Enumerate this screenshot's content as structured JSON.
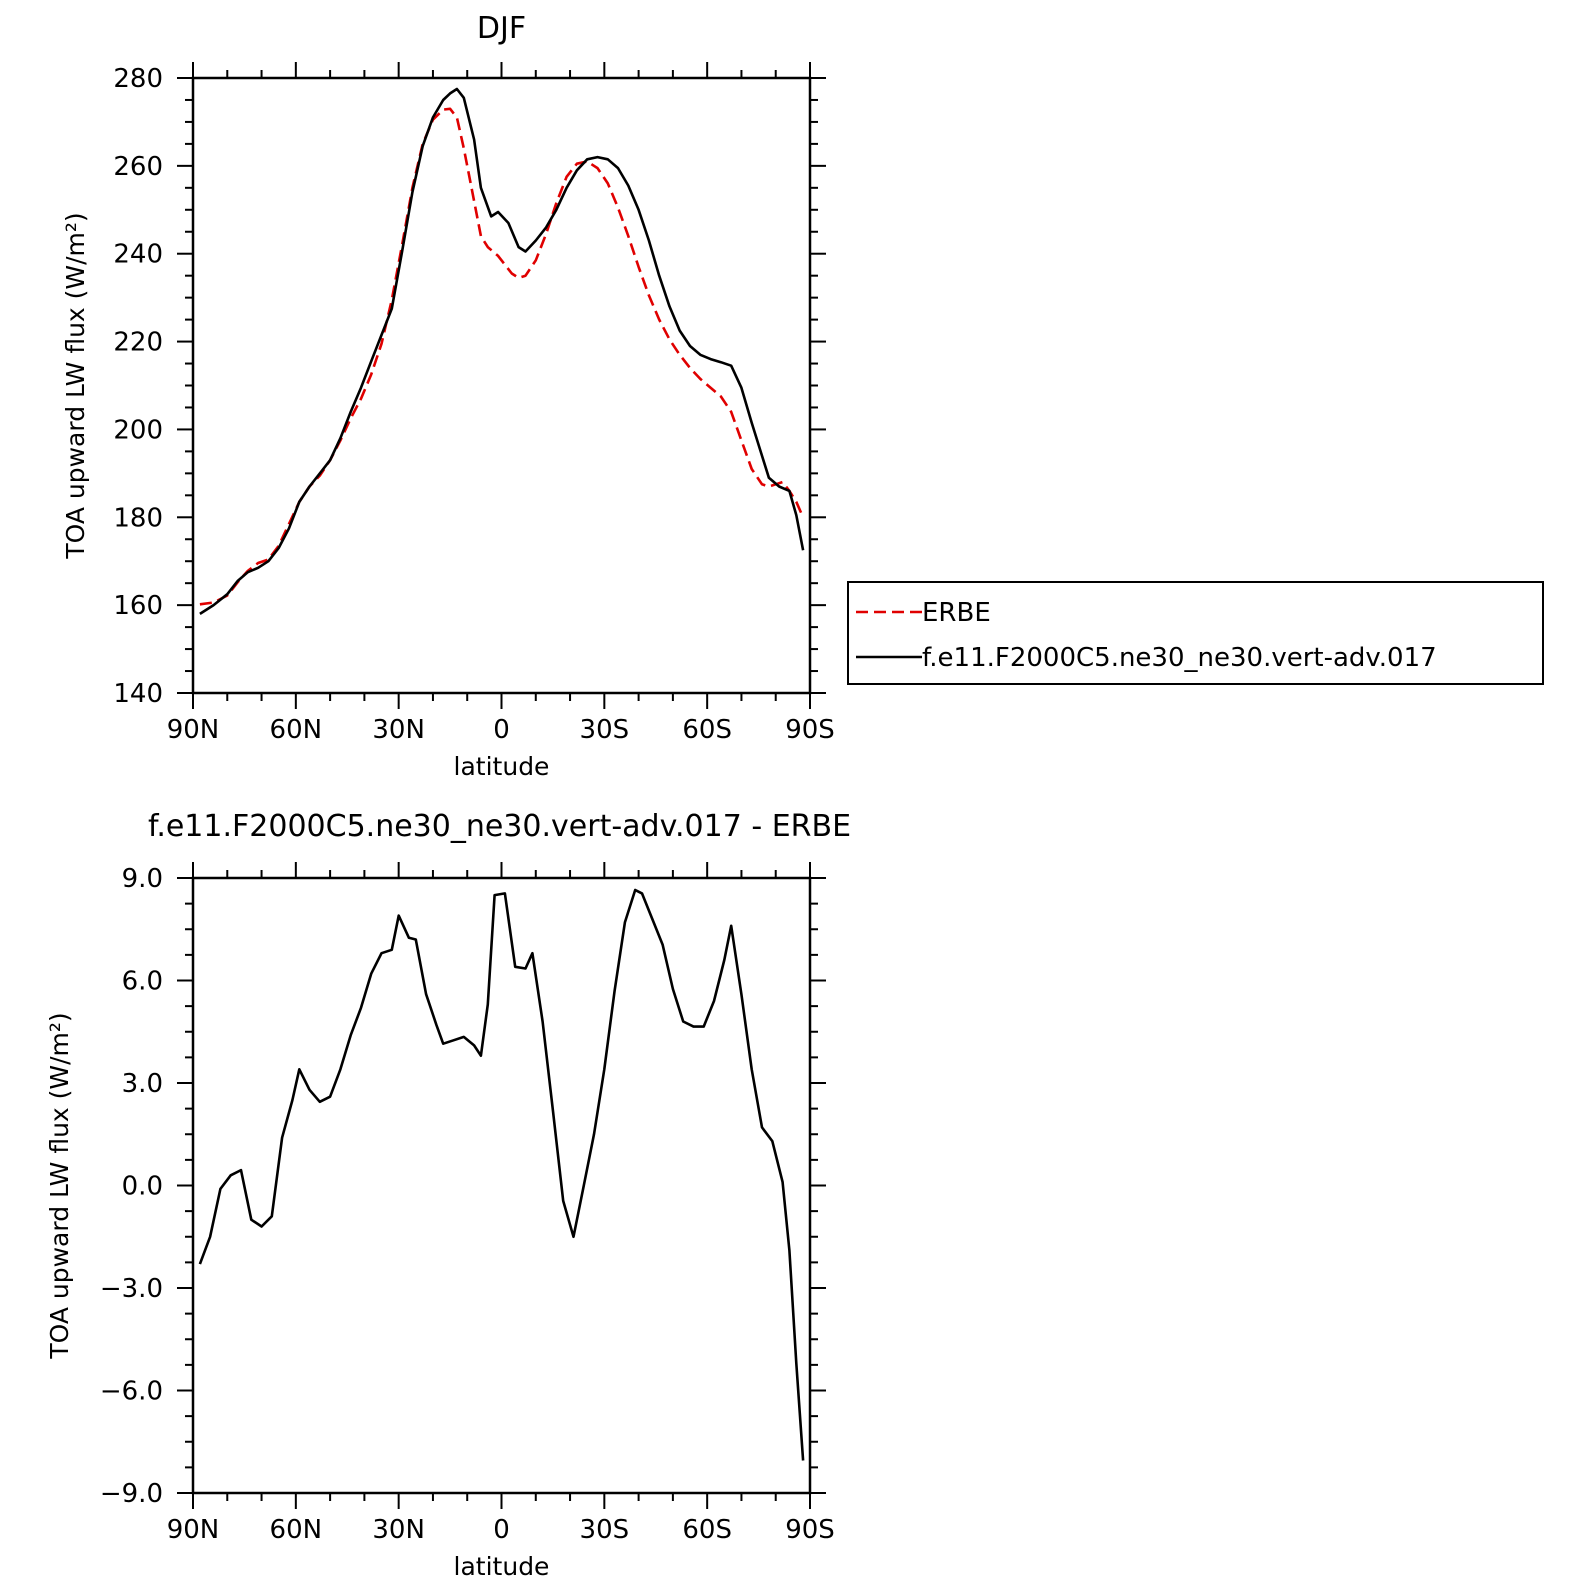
{
  "chart_data": [
    {
      "type": "line",
      "title": "DJF",
      "xlabel": "latitude",
      "ylabel": "TOA upward LW flux (W/m²)",
      "xlim": [
        90,
        -90
      ],
      "ylim": [
        140,
        280
      ],
      "xticks": [
        90,
        60,
        30,
        0,
        -30,
        -60,
        -90
      ],
      "xtick_labels": [
        "90N",
        "60N",
        "30N",
        "0",
        "30S",
        "60S",
        "90S"
      ],
      "yticks": [
        140,
        160,
        180,
        200,
        220,
        240,
        260,
        280
      ],
      "ytick_labels": [
        "140",
        "160",
        "180",
        "200",
        "220",
        "240",
        "260",
        "280"
      ],
      "grid": false,
      "legend_position": "right",
      "legend": [
        "ERBE",
        "f.e11.F2000C5.ne30_ne30.vert-adv.017"
      ],
      "series": [
        {
          "name": "ERBE",
          "color": "#e00000",
          "dash": true,
          "points": [
            [
              88,
              160.2
            ],
            [
              84,
              160.6
            ],
            [
              80,
              162.2
            ],
            [
              77,
              165.2
            ],
            [
              74,
              167.8
            ],
            [
              71,
              169.6
            ],
            [
              68,
              170.4
            ],
            [
              65,
              173.5
            ],
            [
              62,
              178.5
            ],
            [
              59,
              183.5
            ],
            [
              56,
              187
            ],
            [
              53,
              189.5
            ],
            [
              50,
              193
            ],
            [
              47,
              197.5
            ],
            [
              44,
              202.5
            ],
            [
              41,
              207
            ],
            [
              38,
              212.5
            ],
            [
              35,
              219.5
            ],
            [
              32,
              229.5
            ],
            [
              29,
              242
            ],
            [
              26,
              255
            ],
            [
              23,
              265
            ],
            [
              20,
              270.5
            ],
            [
              17,
              272.8
            ],
            [
              15,
              273
            ],
            [
              13,
              271
            ],
            [
              11,
              264
            ],
            [
              8,
              252
            ],
            [
              6,
              244
            ],
            [
              4,
              241.5
            ],
            [
              1,
              239.5
            ],
            [
              -1,
              237.5
            ],
            [
              -3,
              235.5
            ],
            [
              -5,
              234.5
            ],
            [
              -7,
              235
            ],
            [
              -10,
              238.5
            ],
            [
              -13,
              244.5
            ],
            [
              -16,
              251.5
            ],
            [
              -19,
              257.5
            ],
            [
              -22,
              260.5
            ],
            [
              -25,
              261
            ],
            [
              -28,
              259.5
            ],
            [
              -31,
              256
            ],
            [
              -34,
              250.5
            ],
            [
              -37,
              244
            ],
            [
              -40,
              237
            ],
            [
              -43,
              230.5
            ],
            [
              -46,
              225
            ],
            [
              -49,
              220.5
            ],
            [
              -52,
              217
            ],
            [
              -55,
              214
            ],
            [
              -58,
              211.5
            ],
            [
              -61,
              209.5
            ],
            [
              -64,
              207.5
            ],
            [
              -67,
              204
            ],
            [
              -70,
              197.5
            ],
            [
              -73,
              191
            ],
            [
              -76,
              187.5
            ],
            [
              -78,
              187
            ],
            [
              -80,
              187.5
            ],
            [
              -82,
              188
            ],
            [
              -84,
              186
            ],
            [
              -86,
              183.5
            ],
            [
              -88,
              180
            ]
          ]
        },
        {
          "name": "f.e11.F2000C5.ne30_ne30.vert-adv.017",
          "color": "#000000",
          "dash": false,
          "points": [
            [
              88,
              158
            ],
            [
              84,
              160
            ],
            [
              80,
              162.5
            ],
            [
              77,
              165.5
            ],
            [
              74,
              167.5
            ],
            [
              71,
              168.5
            ],
            [
              68,
              170
            ],
            [
              65,
              173
            ],
            [
              62,
              177.5
            ],
            [
              59,
              183.5
            ],
            [
              56,
              187
            ],
            [
              53,
              190
            ],
            [
              50,
              193
            ],
            [
              47,
              198
            ],
            [
              44,
              204
            ],
            [
              41,
              209.5
            ],
            [
              38,
              215.5
            ],
            [
              35,
              221.5
            ],
            [
              32,
              227.5
            ],
            [
              29,
              240.5
            ],
            [
              26,
              254
            ],
            [
              23,
              264.5
            ],
            [
              20,
              271
            ],
            [
              17,
              275
            ],
            [
              15,
              276.5
            ],
            [
              13,
              277.5
            ],
            [
              11,
              275.5
            ],
            [
              8,
              266
            ],
            [
              6,
              255
            ],
            [
              3,
              248.5
            ],
            [
              1,
              249.5
            ],
            [
              -2,
              247
            ],
            [
              -5,
              241.5
            ],
            [
              -7,
              240.5
            ],
            [
              -10,
              243
            ],
            [
              -13,
              246
            ],
            [
              -16,
              250
            ],
            [
              -19,
              255
            ],
            [
              -22,
              259
            ],
            [
              -25,
              261.5
            ],
            [
              -28,
              262
            ],
            [
              -31,
              261.5
            ],
            [
              -34,
              259.5
            ],
            [
              -37,
              255.5
            ],
            [
              -40,
              250
            ],
            [
              -43,
              243
            ],
            [
              -46,
              235
            ],
            [
              -49,
              228
            ],
            [
              -52,
              222.5
            ],
            [
              -55,
              219
            ],
            [
              -58,
              217
            ],
            [
              -61,
              216
            ],
            [
              -64,
              215.3
            ],
            [
              -67,
              214.5
            ],
            [
              -70,
              209.5
            ],
            [
              -73,
              201.5
            ],
            [
              -76,
              194
            ],
            [
              -78,
              189
            ],
            [
              -81,
              187
            ],
            [
              -84,
              186
            ],
            [
              -86,
              180.5
            ],
            [
              -88,
              172.5
            ]
          ]
        }
      ]
    },
    {
      "type": "line",
      "title": "f.e11.F2000C5.ne30_ne30.vert-adv.017 - ERBE",
      "xlabel": "latitude",
      "ylabel": "TOA upward LW flux (W/m²)",
      "xlim": [
        90,
        -90
      ],
      "ylim": [
        -9,
        9
      ],
      "xticks": [
        90,
        60,
        30,
        0,
        -30,
        -60,
        -90
      ],
      "xtick_labels": [
        "90N",
        "60N",
        "30N",
        "0",
        "30S",
        "60S",
        "90S"
      ],
      "yticks": [
        -9,
        -6,
        -3,
        0,
        3,
        6,
        9
      ],
      "ytick_labels": [
        "−9.0",
        "−6.0",
        "−3.0",
        "0.0",
        "3.0",
        "6.0",
        "9.0"
      ],
      "grid": false,
      "series": [
        {
          "color": "#000000",
          "dash": false,
          "points": [
            [
              88,
              -2.3
            ],
            [
              85,
              -1.5
            ],
            [
              82,
              -0.1
            ],
            [
              79,
              0.3
            ],
            [
              76,
              0.45
            ],
            [
              73,
              -1
            ],
            [
              70,
              -1.2
            ],
            [
              67,
              -0.9
            ],
            [
              64,
              1.4
            ],
            [
              61,
              2.5
            ],
            [
              59,
              3.4
            ],
            [
              56,
              2.8
            ],
            [
              53,
              2.45
            ],
            [
              50,
              2.6
            ],
            [
              47,
              3.4
            ],
            [
              44,
              4.4
            ],
            [
              41,
              5.2
            ],
            [
              38,
              6.2
            ],
            [
              35,
              6.8
            ],
            [
              32,
              6.9
            ],
            [
              30,
              7.9
            ],
            [
              27,
              7.25
            ],
            [
              25,
              7.2
            ],
            [
              22,
              5.6
            ],
            [
              19,
              4.7
            ],
            [
              17,
              4.15
            ],
            [
              14,
              4.25
            ],
            [
              11,
              4.35
            ],
            [
              8,
              4.1
            ],
            [
              6,
              3.8
            ],
            [
              4,
              5.3
            ],
            [
              2,
              8.5
            ],
            [
              -1,
              8.55
            ],
            [
              -4,
              6.4
            ],
            [
              -7,
              6.35
            ],
            [
              -9,
              6.8
            ],
            [
              -12,
              4.8
            ],
            [
              -15,
              2.2
            ],
            [
              -18,
              -0.45
            ],
            [
              -21,
              -1.5
            ],
            [
              -24,
              0
            ],
            [
              -27,
              1.5
            ],
            [
              -30,
              3.4
            ],
            [
              -33,
              5.7
            ],
            [
              -36,
              7.7
            ],
            [
              -39,
              8.65
            ],
            [
              -41,
              8.55
            ],
            [
              -44,
              7.8
            ],
            [
              -47,
              7.05
            ],
            [
              -50,
              5.75
            ],
            [
              -53,
              4.8
            ],
            [
              -56,
              4.65
            ],
            [
              -59,
              4.65
            ],
            [
              -62,
              5.4
            ],
            [
              -65,
              6.6
            ],
            [
              -67,
              7.6
            ],
            [
              -70,
              5.6
            ],
            [
              -73,
              3.4
            ],
            [
              -76,
              1.7
            ],
            [
              -79,
              1.3
            ],
            [
              -82,
              0.1
            ],
            [
              -84,
              -1.9
            ],
            [
              -86,
              -5.2
            ],
            [
              -88,
              -8.05
            ]
          ]
        }
      ]
    }
  ]
}
